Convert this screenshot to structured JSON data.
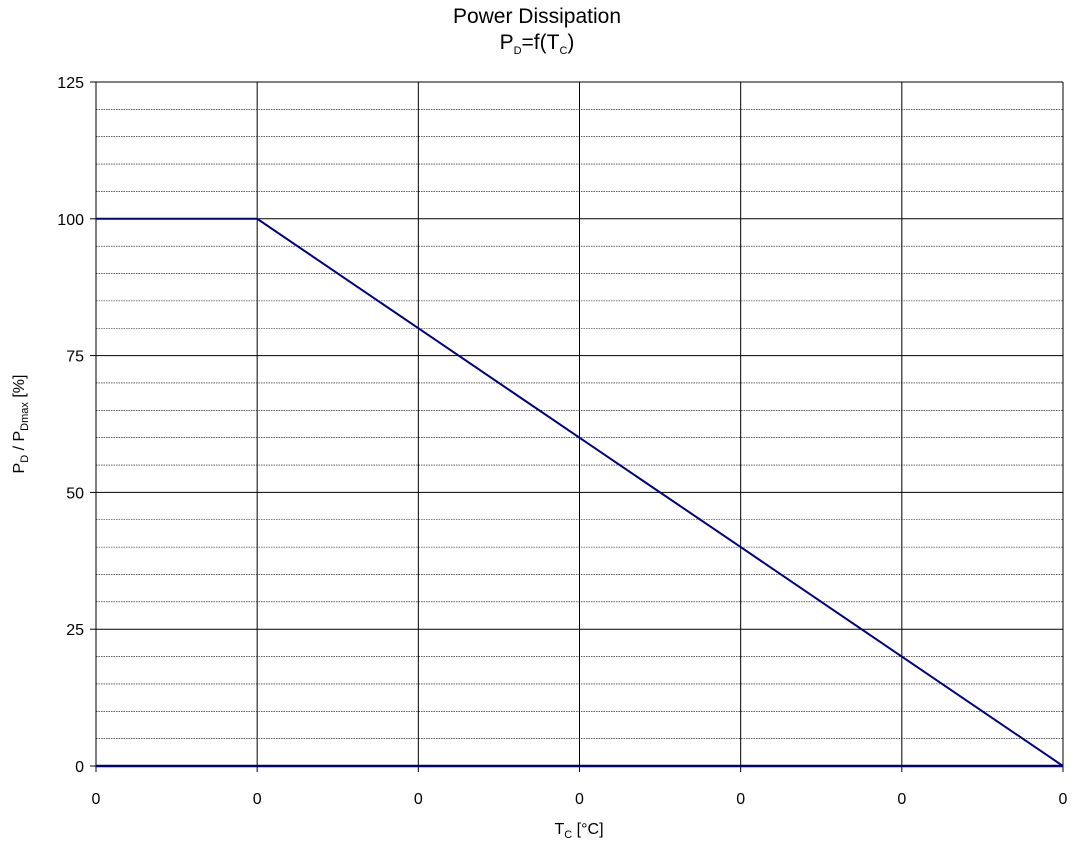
{
  "chart_data": {
    "type": "line",
    "title": "Power Dissipation",
    "subtitle": {
      "main": "P",
      "main_sub": "D",
      "middle": "=f(T",
      "middle_sub": "C",
      "end": ")"
    },
    "xlabel": {
      "main": "T",
      "sub": "C",
      "rest": " [°C]"
    },
    "ylabel": {
      "p1": "P",
      "p1_sub": "D",
      "mid": " / P",
      "p2_sub": "Dmax",
      "rest": " [%]"
    },
    "x_categories": [
      "0",
      "0",
      "0",
      "0",
      "0",
      "0",
      "0"
    ],
    "x_tick_positions": [
      0,
      1,
      2,
      3,
      4,
      5,
      6
    ],
    "y_ticks": [
      0,
      25,
      50,
      75,
      100,
      125
    ],
    "ylim": [
      0,
      125
    ],
    "xlim": [
      0,
      6
    ],
    "grid": true,
    "minor_y_step": 5,
    "series": [
      {
        "color": "#000080",
        "x": [
          0,
          1,
          2,
          3,
          4,
          5,
          6
        ],
        "y": [
          100,
          100,
          80,
          60,
          40,
          20,
          0
        ]
      }
    ]
  }
}
